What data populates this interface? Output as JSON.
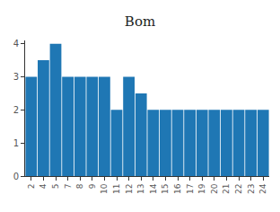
{
  "chart_data": {
    "type": "bar",
    "title": "Bom",
    "categories": [
      "2",
      "4",
      "5",
      "7",
      "8",
      "9",
      "10",
      "11",
      "12",
      "13",
      "14",
      "15",
      "16",
      "17",
      "19",
      "20",
      "21",
      "22",
      "23",
      "24"
    ],
    "values": [
      3,
      3.5,
      4,
      3,
      3,
      3,
      3,
      2,
      3,
      2.5,
      2,
      2,
      2,
      2,
      2,
      2,
      2,
      2,
      2,
      2
    ],
    "color": "#1f77b4",
    "ylim": [
      0,
      4.1
    ],
    "yticks": [
      0,
      1,
      2,
      3,
      4
    ],
    "grid": false
  }
}
